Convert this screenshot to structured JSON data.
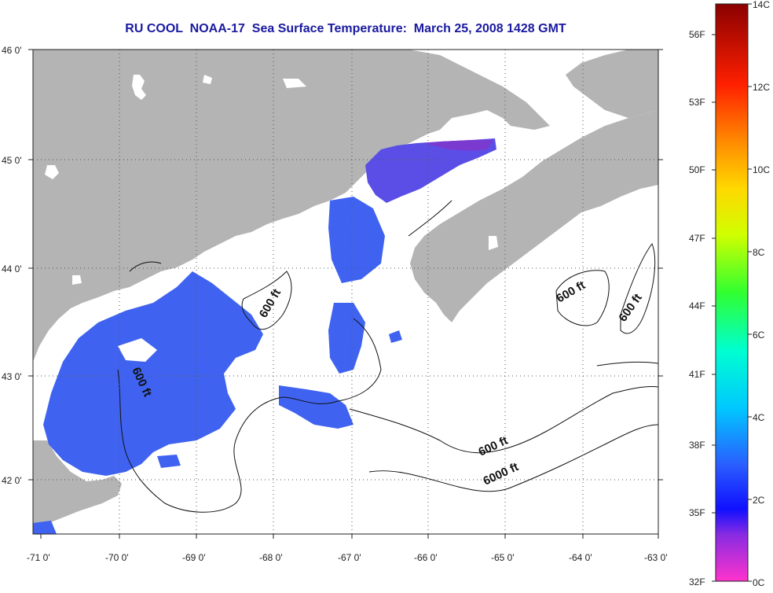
{
  "title": "RU COOL  NOAA-17  Sea Surface Temperature:  March 25, 2008 1428 GMT",
  "map": {
    "lat_labels": [
      "46 0'",
      "45 0'",
      "44 0'",
      "43 0'",
      "42 0'"
    ],
    "lon_labels": [
      "-71 0'",
      "-70 0'",
      "-69 0'",
      "-68 0'",
      "-67 0'",
      "-66 0'",
      "-65 0'",
      "-64 0'",
      "-63 0'"
    ],
    "contour_labels": [
      "600 ft",
      "600 ft",
      "600 ft",
      "600 ft",
      "600 ft",
      "6000 ft"
    ],
    "colors": {
      "land": "#b4b4b4",
      "ocean_nodata": "#ffffff",
      "sst_main": "#3f63f0",
      "sst_cold": "#6a3ad8"
    }
  },
  "colorbar": {
    "celsius_labels": [
      "14C",
      "12C",
      "10C",
      "8C",
      "6C",
      "4C",
      "2C",
      "0C"
    ],
    "fahrenheit_labels": [
      "56F",
      "53F",
      "50F",
      "47F",
      "44F",
      "41F",
      "38F",
      "35F",
      "32F"
    ],
    "range_c": [
      0,
      14
    ]
  }
}
